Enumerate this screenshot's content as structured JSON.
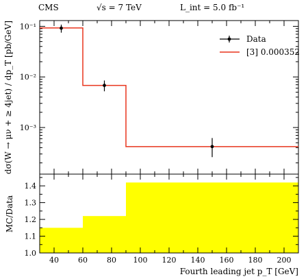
{
  "header": {
    "experiment": "CMS",
    "energy": "√s = 7 TeV",
    "luminosity": "L_int = 5.0 fb⁻¹"
  },
  "chart_data": [
    {
      "type": "line",
      "panel": "main",
      "ylabel": "dσ(W → μν + ≥ 4jet) / dp_T [pb/GeV]",
      "yscale": "log",
      "xlim": [
        30,
        210
      ],
      "ylim": [
        0.00012,
        0.13
      ],
      "ytick_labels": [
        "10⁻¹",
        "10⁻²",
        "10⁻³"
      ],
      "ytick_values": [
        0.1,
        0.01,
        0.001
      ],
      "legend": {
        "position": "top-right",
        "entries": [
          "Data",
          "[3] 0.000352"
        ]
      },
      "series": [
        {
          "name": "Data",
          "style": "points",
          "color": "#000000",
          "x": [
            45,
            75,
            150
          ],
          "y": [
            0.092,
            0.0068,
            0.00042
          ],
          "yerr_low": [
            0.075,
            0.0052,
            0.00026
          ],
          "yerr_high": [
            0.108,
            0.0085,
            0.00062
          ]
        },
        {
          "name": "[3] 0.000352",
          "style": "step",
          "color": "#e8341c",
          "bin_edges": [
            30,
            60,
            90,
            210
          ],
          "values": [
            0.093,
            0.0068,
            0.00042
          ]
        }
      ]
    },
    {
      "type": "bar",
      "panel": "ratio",
      "ylabel": "MC/Data",
      "xlabel": "Fourth leading jet p_T [GeV]",
      "xlim": [
        30,
        210
      ],
      "ylim": [
        1.0,
        1.47
      ],
      "ytick_labels": [
        "1.0",
        "1.1",
        "1.2",
        "1.3",
        "1.4"
      ],
      "ytick_values": [
        1.0,
        1.1,
        1.2,
        1.3,
        1.4
      ],
      "xtick_labels": [
        "40",
        "60",
        "80",
        "100",
        "120",
        "140",
        "160",
        "180",
        "200"
      ],
      "xtick_values": [
        40,
        60,
        80,
        100,
        120,
        140,
        160,
        180,
        200
      ],
      "fill_color": "#ffff00",
      "bin_edges": [
        30,
        60,
        90,
        210
      ],
      "values": [
        1.15,
        1.22,
        1.42
      ]
    }
  ]
}
